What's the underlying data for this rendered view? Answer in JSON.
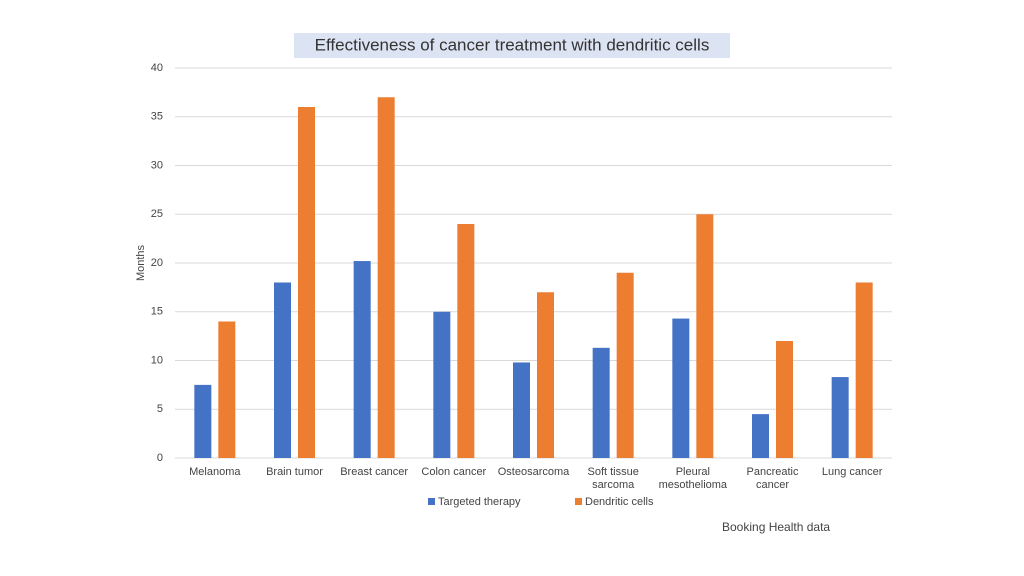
{
  "chart_data": {
    "type": "bar",
    "title": "Effectiveness of cancer treatment with dendritic cells",
    "y_label": "Months",
    "source": "Booking Health data",
    "categories": [
      "Melanoma",
      "Brain tumor",
      "Breast cancer",
      "Colon cancer",
      "Osteosarcoma",
      "Soft tissue sarcoma",
      "Pleural mesothelioma",
      "Pancreatic cancer",
      "Lung cancer"
    ],
    "series": [
      {
        "name": "Targeted therapy",
        "color": "#4472c4",
        "values": [
          7.5,
          18,
          20.2,
          15,
          9.8,
          11.3,
          14.3,
          4.5,
          8.3
        ]
      },
      {
        "name": "Dendritic cells",
        "color": "#ed7d31",
        "values": [
          14,
          36,
          37,
          24,
          17,
          19,
          25,
          12,
          18
        ]
      }
    ],
    "ylim": [
      0,
      40
    ],
    "yticks": [
      0,
      5,
      10,
      15,
      20,
      25,
      30,
      35,
      40
    ],
    "grid": true,
    "legend": "bottom"
  }
}
